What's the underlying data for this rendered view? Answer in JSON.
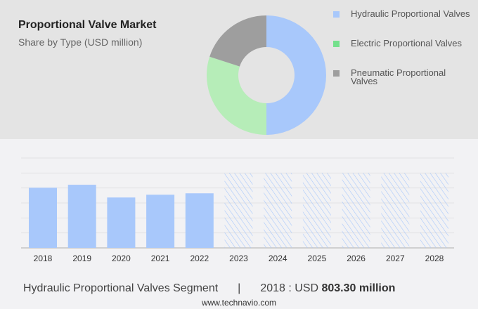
{
  "chart_data": [
    {
      "type": "pie",
      "donut": true,
      "title": "Proportional Valve Market",
      "subtitle": "Share by Type (USD million)",
      "legend_position": "right",
      "slices": [
        {
          "name": "Hydraulic Proportional Valves",
          "share": 50,
          "color": "#a8c8fb"
        },
        {
          "name": "Electric Proportional Valves",
          "share": 30,
          "color": "#b6edb8"
        },
        {
          "name": "Pneumatic Proportional Valves",
          "share": 20,
          "color": "#9e9e9e"
        }
      ],
      "legend_colors": [
        "#a8c8fb",
        "#74e08c",
        "#9e9e9e"
      ]
    },
    {
      "type": "bar",
      "categories": [
        "2018",
        "2019",
        "2020",
        "2021",
        "2022",
        "2023",
        "2024",
        "2025",
        "2026",
        "2027",
        "2028"
      ],
      "values": [
        803.3,
        843,
        673,
        710,
        729,
        null,
        null,
        null,
        null,
        null,
        null
      ],
      "forecast_categories": [
        "2023",
        "2024",
        "2025",
        "2026",
        "2027",
        "2028"
      ],
      "ylim": [
        0,
        1200
      ],
      "grid": true,
      "color": "#a8c8fb"
    }
  ],
  "footer": {
    "segment": "Hydraulic Proportional Valves Segment",
    "separator": "|",
    "year_label": "2018 : USD ",
    "value": "803.30 million"
  },
  "url": "www.technavio.com"
}
